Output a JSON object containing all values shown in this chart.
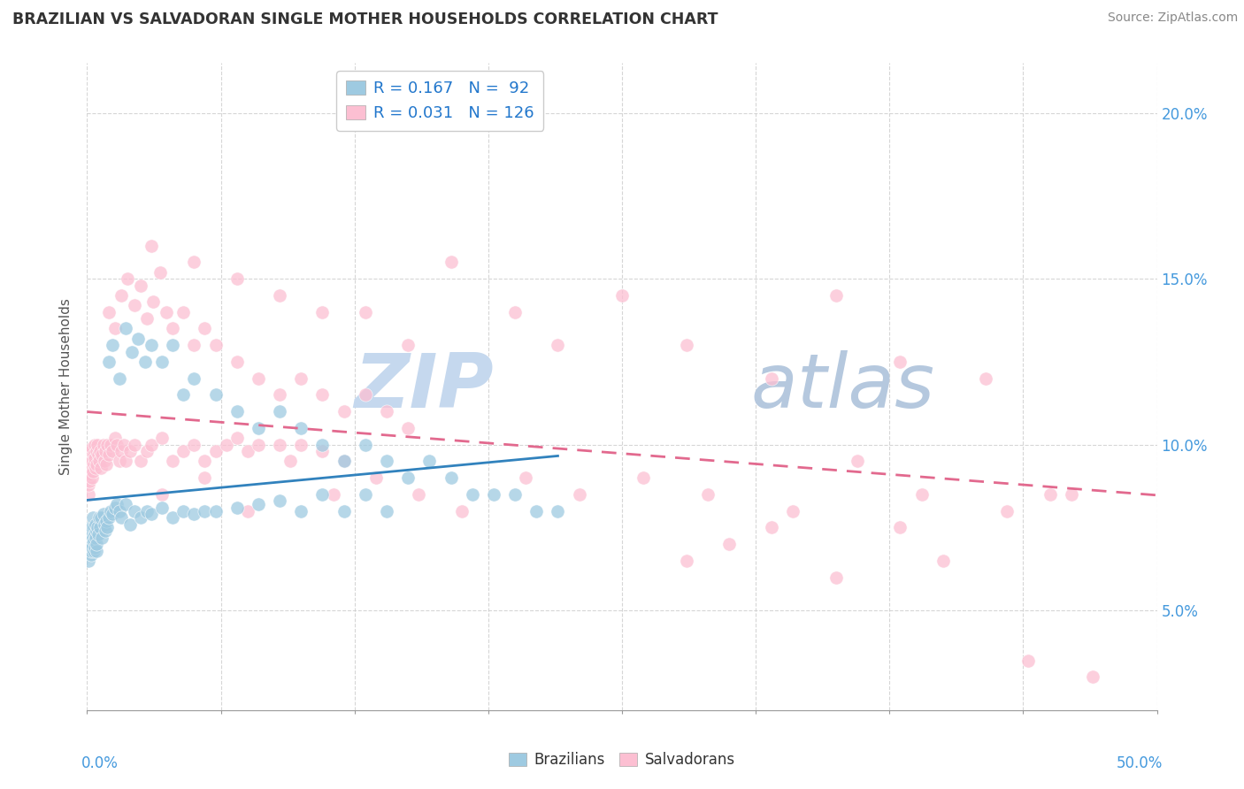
{
  "title": "BRAZILIAN VS SALVADORAN SINGLE MOTHER HOUSEHOLDS CORRELATION CHART",
  "source": "Source: ZipAtlas.com",
  "ylabel": "Single Mother Households",
  "xlim": [
    0.0,
    50.0
  ],
  "ylim": [
    2.0,
    21.5
  ],
  "yticks": [
    5.0,
    10.0,
    15.0,
    20.0
  ],
  "right_ytick_labels": [
    "5.0%",
    "10.0%",
    "15.0%",
    "20.0%"
  ],
  "legend_r1": "R = 0.167",
  "legend_n1": "N =  92",
  "legend_r2": "R = 0.031",
  "legend_n2": "N = 126",
  "color_brazil": "#9ecae1",
  "color_salvador": "#fcbfd2",
  "color_brazil_line": "#3182bd",
  "color_salvador_line": "#e2698e",
  "color_axis_label": "#4499dd",
  "watermark_zip": "ZIP",
  "watermark_atlas": "atlas",
  "watermark_color_zip": "#c5d8ee",
  "watermark_color_atlas": "#b5c8de",
  "background_color": "#ffffff",
  "grid_color": "#cccccc",
  "brazil_x": [
    0.05,
    0.07,
    0.08,
    0.1,
    0.12,
    0.13,
    0.15,
    0.17,
    0.18,
    0.2,
    0.22,
    0.23,
    0.25,
    0.27,
    0.28,
    0.3,
    0.32,
    0.33,
    0.35,
    0.37,
    0.38,
    0.4,
    0.42,
    0.43,
    0.45,
    0.47,
    0.5,
    0.55,
    0.6,
    0.65,
    0.7,
    0.75,
    0.8,
    0.85,
    0.9,
    0.95,
    1.0,
    1.1,
    1.2,
    1.3,
    1.4,
    1.5,
    1.6,
    1.8,
    2.0,
    2.2,
    2.5,
    2.8,
    3.0,
    3.5,
    4.0,
    4.5,
    5.0,
    5.5,
    6.0,
    7.0,
    8.0,
    9.0,
    10.0,
    11.0,
    12.0,
    13.0,
    14.0,
    1.0,
    1.2,
    1.5,
    1.8,
    2.1,
    2.4,
    2.7,
    3.0,
    3.5,
    4.0,
    4.5,
    5.0,
    6.0,
    7.0,
    8.0,
    9.0,
    10.0,
    11.0,
    12.0,
    13.0,
    14.0,
    15.0,
    16.0,
    17.0,
    18.0,
    19.0,
    20.0,
    21.0,
    22.0
  ],
  "brazil_y": [
    6.5,
    7.0,
    6.8,
    7.2,
    6.9,
    7.5,
    7.1,
    6.7,
    7.3,
    6.8,
    7.0,
    7.5,
    6.9,
    7.2,
    7.8,
    6.8,
    7.5,
    7.1,
    7.3,
    6.9,
    7.6,
    7.2,
    6.8,
    7.4,
    7.0,
    7.5,
    7.3,
    7.8,
    7.5,
    7.8,
    7.2,
    7.9,
    7.6,
    7.4,
    7.7,
    7.5,
    7.8,
    8.0,
    7.9,
    8.1,
    8.2,
    8.0,
    7.8,
    8.2,
    7.6,
    8.0,
    7.8,
    8.0,
    7.9,
    8.1,
    7.8,
    8.0,
    7.9,
    8.0,
    8.0,
    8.1,
    8.2,
    8.3,
    8.0,
    8.5,
    8.0,
    8.5,
    8.0,
    12.5,
    13.0,
    12.0,
    13.5,
    12.8,
    13.2,
    12.5,
    13.0,
    12.5,
    13.0,
    11.5,
    12.0,
    11.5,
    11.0,
    10.5,
    11.0,
    10.5,
    10.0,
    9.5,
    10.0,
    9.5,
    9.0,
    9.5,
    9.0,
    8.5,
    8.5,
    8.5,
    8.0,
    8.0
  ],
  "salvador_x": [
    0.05,
    0.07,
    0.08,
    0.1,
    0.12,
    0.13,
    0.15,
    0.17,
    0.18,
    0.2,
    0.22,
    0.23,
    0.25,
    0.27,
    0.3,
    0.33,
    0.35,
    0.37,
    0.4,
    0.42,
    0.45,
    0.47,
    0.5,
    0.55,
    0.6,
    0.65,
    0.7,
    0.75,
    0.8,
    0.85,
    0.9,
    0.95,
    1.0,
    1.1,
    1.2,
    1.3,
    1.4,
    1.5,
    1.6,
    1.7,
    1.8,
    2.0,
    2.2,
    2.5,
    2.8,
    3.0,
    3.5,
    4.0,
    4.5,
    5.0,
    5.5,
    6.0,
    6.5,
    7.0,
    7.5,
    8.0,
    9.0,
    10.0,
    11.0,
    12.0,
    1.0,
    1.3,
    1.6,
    1.9,
    2.2,
    2.5,
    2.8,
    3.1,
    3.4,
    3.7,
    4.0,
    4.5,
    5.0,
    5.5,
    6.0,
    7.0,
    8.0,
    9.0,
    10.0,
    11.0,
    12.0,
    13.0,
    14.0,
    15.0,
    3.0,
    5.0,
    7.0,
    9.0,
    11.0,
    13.0,
    15.0,
    17.0,
    20.0,
    22.0,
    25.0,
    28.0,
    32.0,
    35.0,
    38.0,
    42.0,
    45.0,
    3.5,
    5.5,
    7.5,
    9.5,
    11.5,
    13.5,
    15.5,
    17.5,
    20.5,
    23.0,
    26.0,
    29.0,
    33.0,
    36.0,
    39.0,
    43.0,
    46.0,
    28.0,
    30.0,
    32.0,
    35.0,
    38.0,
    40.0,
    44.0,
    47.0
  ],
  "salvador_y": [
    8.5,
    9.0,
    8.8,
    9.2,
    8.9,
    9.5,
    9.1,
    9.7,
    9.3,
    9.8,
    9.0,
    9.5,
    9.9,
    9.2,
    9.7,
    9.4,
    10.0,
    9.6,
    9.3,
    9.8,
    9.4,
    10.0,
    9.7,
    9.5,
    9.8,
    9.3,
    9.7,
    10.0,
    9.5,
    9.8,
    9.4,
    10.0,
    9.7,
    10.0,
    9.8,
    10.2,
    10.0,
    9.5,
    9.8,
    10.0,
    9.5,
    9.8,
    10.0,
    9.5,
    9.8,
    10.0,
    10.2,
    9.5,
    9.8,
    10.0,
    9.5,
    9.8,
    10.0,
    10.2,
    9.8,
    10.0,
    10.0,
    10.0,
    9.8,
    9.5,
    14.0,
    13.5,
    14.5,
    15.0,
    14.2,
    14.8,
    13.8,
    14.3,
    15.2,
    14.0,
    13.5,
    14.0,
    13.0,
    13.5,
    13.0,
    12.5,
    12.0,
    11.5,
    12.0,
    11.5,
    11.0,
    11.5,
    11.0,
    10.5,
    16.0,
    15.5,
    15.0,
    14.5,
    14.0,
    14.0,
    13.0,
    15.5,
    14.0,
    13.0,
    14.5,
    13.0,
    12.0,
    14.5,
    12.5,
    12.0,
    8.5,
    8.5,
    9.0,
    8.0,
    9.5,
    8.5,
    9.0,
    8.5,
    8.0,
    9.0,
    8.5,
    9.0,
    8.5,
    8.0,
    9.5,
    8.5,
    8.0,
    8.5,
    6.5,
    7.0,
    7.5,
    6.0,
    7.5,
    6.5,
    3.5,
    3.0
  ]
}
